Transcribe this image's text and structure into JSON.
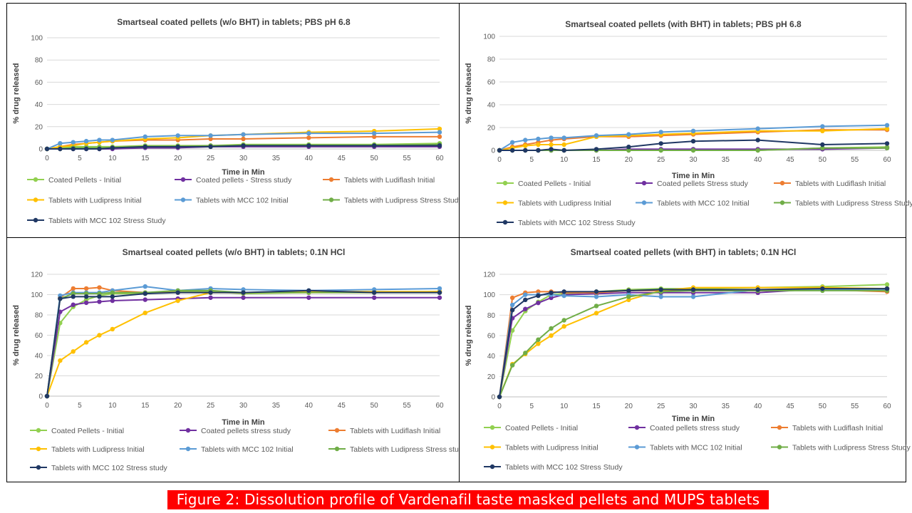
{
  "caption": "Figure 2: Dissolution profile of Vardenafil taste masked pellets and MUPS tablets",
  "colors": {
    "s1": "#92d050",
    "s2": "#7030a0",
    "s3": "#ed7d31",
    "s4": "#ffc000",
    "s5": "#5b9bd5",
    "s6": "#70ad47",
    "s7": "#203864"
  },
  "chart_data": [
    {
      "type": "line",
      "title": "Smartseal coated pellets (w/o BHT) in tablets;  PBS pH 6.8",
      "xlabel": "Time in Min",
      "ylabel": "% drug released",
      "xlim": [
        0,
        60
      ],
      "ylim": [
        0,
        100
      ],
      "xticks": [
        0,
        5,
        10,
        15,
        20,
        25,
        30,
        35,
        40,
        45,
        50,
        55,
        60
      ],
      "yticks": [
        0,
        20,
        40,
        60,
        80,
        100
      ],
      "legend_position": "bottom",
      "x": [
        0,
        2,
        4,
        6,
        8,
        10,
        15,
        20,
        25,
        30,
        40,
        50,
        60
      ],
      "series": [
        {
          "name": "Coated Pellets - Initial",
          "values": [
            0,
            1,
            2,
            2,
            2,
            2,
            3,
            3,
            3,
            4,
            4,
            4,
            5
          ]
        },
        {
          "name": "Coated pellets - Stress study",
          "values": [
            0,
            0,
            0,
            0,
            0,
            0,
            1,
            1,
            2,
            2,
            2,
            2,
            2
          ]
        },
        {
          "name": "Tablets with Ludiflash Initial",
          "values": [
            0,
            2,
            4,
            5,
            6,
            7,
            8,
            8,
            9,
            9,
            10,
            11,
            11
          ]
        },
        {
          "name": "Tablets with Ludipress Initial",
          "values": [
            0,
            2,
            3,
            5,
            6,
            7,
            9,
            10,
            12,
            13,
            15,
            16,
            18
          ]
        },
        {
          "name": "Tablets with MCC 102 Initial",
          "values": [
            0,
            5,
            6,
            7,
            8,
            8,
            11,
            12,
            12,
            13,
            14,
            14,
            15
          ]
        },
        {
          "name": "Tablets with Ludipress Stress Study",
          "values": [
            0,
            0,
            1,
            1,
            1,
            1,
            2,
            2,
            3,
            3,
            3,
            3,
            4
          ]
        },
        {
          "name": "Tablets with MCC 102 Stress Study",
          "values": [
            0,
            0,
            0,
            0,
            0,
            1,
            2,
            2,
            2,
            3,
            3,
            3,
            3
          ]
        }
      ]
    },
    {
      "type": "line",
      "title": "Smartseal coated pellets (with BHT) in tablets; PBS pH 6.8",
      "xlabel": "Time in Min",
      "ylabel": "% drug released",
      "xlim": [
        0,
        60
      ],
      "ylim": [
        0,
        100
      ],
      "xticks": [
        0,
        5,
        10,
        15,
        20,
        25,
        30,
        35,
        40,
        45,
        50,
        55,
        60
      ],
      "yticks": [
        0,
        20,
        40,
        60,
        80,
        100
      ],
      "legend_position": "bottom",
      "x": [
        0,
        2,
        4,
        6,
        8,
        10,
        15,
        20,
        25,
        30,
        40,
        50,
        60
      ],
      "series": [
        {
          "name": "Coated Pellets - Initial",
          "values": [
            0,
            0,
            0,
            0,
            0,
            0,
            0,
            0,
            0,
            0,
            0,
            2,
            3
          ]
        },
        {
          "name": "Coated pellets  Stress study",
          "values": [
            0,
            0,
            0,
            0,
            0,
            0,
            0,
            1,
            1,
            1,
            1,
            1,
            2
          ]
        },
        {
          "name": "Tablets with Ludiflash Initial",
          "values": [
            0,
            3,
            5,
            7,
            9,
            10,
            12,
            12,
            13,
            14,
            16,
            18,
            18
          ]
        },
        {
          "name": "Tablets with Ludipress Initial",
          "values": [
            0,
            2,
            4,
            5,
            5,
            5,
            12,
            13,
            14,
            15,
            17,
            17,
            19
          ]
        },
        {
          "name": "Tablets with MCC 102 Initial",
          "values": [
            0,
            7,
            9,
            10,
            11,
            11,
            13,
            14,
            16,
            17,
            19,
            21,
            22
          ]
        },
        {
          "name": "Tablets with Ludipress Stress Study",
          "values": [
            0,
            0,
            0,
            0,
            0,
            0,
            0,
            0,
            0,
            0,
            0,
            2,
            2
          ]
        },
        {
          "name": "Tablets with MCC 102 Stress Study",
          "values": [
            0,
            0,
            0,
            0,
            1,
            0,
            1,
            3,
            6,
            8,
            9,
            5,
            6
          ]
        }
      ]
    },
    {
      "type": "line",
      "title": "Smartseal coated pellets (w/o BHT) in tablets; 0.1N HCl",
      "xlabel": "Time in Min",
      "ylabel": "% drug released",
      "xlim": [
        0,
        60
      ],
      "ylim": [
        0,
        120
      ],
      "xticks": [
        0,
        5,
        10,
        15,
        20,
        25,
        30,
        35,
        40,
        45,
        50,
        55,
        60
      ],
      "yticks": [
        0,
        20,
        40,
        60,
        80,
        100,
        120
      ],
      "legend_position": "bottom",
      "x": [
        0,
        2,
        4,
        6,
        8,
        10,
        15,
        20,
        25,
        30,
        40,
        50,
        60
      ],
      "series": [
        {
          "name": "Coated Pellets - Initial",
          "values": [
            0,
            72,
            88,
            95,
            99,
            101,
            101,
            103,
            103,
            101,
            102,
            102,
            103
          ]
        },
        {
          "name": "Coated pellets  stress study",
          "values": [
            0,
            83,
            90,
            92,
            93,
            94,
            95,
            96,
            97,
            97,
            97,
            97,
            97
          ]
        },
        {
          "name": "Tablets with Ludiflash Initial",
          "values": [
            0,
            97,
            106,
            106,
            107,
            104,
            102,
            102,
            102,
            102,
            102,
            102,
            103
          ]
        },
        {
          "name": "Tablets with Ludipress Initial",
          "values": [
            0,
            35,
            44,
            53,
            60,
            66,
            82,
            94,
            102,
            102,
            103,
            103,
            103
          ]
        },
        {
          "name": "Tablets with MCC 102 Initial",
          "values": [
            0,
            99,
            102,
            102,
            102,
            104,
            108,
            104,
            106,
            105,
            104,
            105,
            106
          ]
        },
        {
          "name": "Tablets with Ludipress Stress study",
          "values": [
            0,
            96,
            101,
            101,
            101,
            102,
            102,
            104,
            104,
            102,
            102,
            102,
            102
          ]
        },
        {
          "name": "Tablets with MCC 102 Stress study",
          "values": [
            0,
            96,
            98,
            98,
            98,
            98,
            101,
            102,
            102,
            102,
            104,
            102,
            102
          ]
        }
      ]
    },
    {
      "type": "line",
      "title": "Smartseal coated pellets (with BHT) in tablets; 0.1N HCl",
      "xlabel": "Time in Min",
      "ylabel": "% drug released",
      "xlim": [
        0,
        60
      ],
      "ylim": [
        0,
        120
      ],
      "xticks": [
        0,
        5,
        10,
        15,
        20,
        25,
        30,
        35,
        40,
        45,
        50,
        55,
        60
      ],
      "yticks": [
        0,
        20,
        40,
        60,
        80,
        100,
        120
      ],
      "legend_position": "bottom",
      "x": [
        0,
        2,
        4,
        6,
        8,
        10,
        15,
        20,
        25,
        30,
        40,
        50,
        60
      ],
      "series": [
        {
          "name": "Coated Pellets - Initial",
          "values": [
            0,
            65,
            84,
            93,
            100,
            101,
            103,
            105,
            106,
            106,
            107,
            108,
            110
          ]
        },
        {
          "name": "Coated pellets stress study",
          "values": [
            0,
            77,
            86,
            92,
            97,
            100,
            101,
            102,
            102,
            102,
            102,
            106,
            106
          ]
        },
        {
          "name": "Tablets with Ludiflash Initial",
          "values": [
            0,
            97,
            102,
            103,
            103,
            102,
            102,
            104,
            104,
            104,
            104,
            105,
            103
          ]
        },
        {
          "name": "Tablets with Ludipress Initial",
          "values": [
            0,
            32,
            42,
            52,
            60,
            69,
            82,
            95,
            104,
            107,
            107,
            107,
            106
          ]
        },
        {
          "name": "Tablets with MCC 102 Initial",
          "values": [
            0,
            90,
            100,
            100,
            100,
            99,
            98,
            100,
            98,
            98,
            105,
            105,
            105
          ]
        },
        {
          "name": "Tablets with Ludipress Stress Study",
          "values": [
            0,
            31,
            43,
            56,
            67,
            75,
            89,
            98,
            103,
            104,
            104,
            104,
            104
          ]
        },
        {
          "name": "Tablets with MCC 102 Stress Study",
          "values": [
            0,
            85,
            95,
            99,
            102,
            103,
            103,
            104,
            105,
            105,
            105,
            106,
            106
          ]
        }
      ]
    }
  ]
}
